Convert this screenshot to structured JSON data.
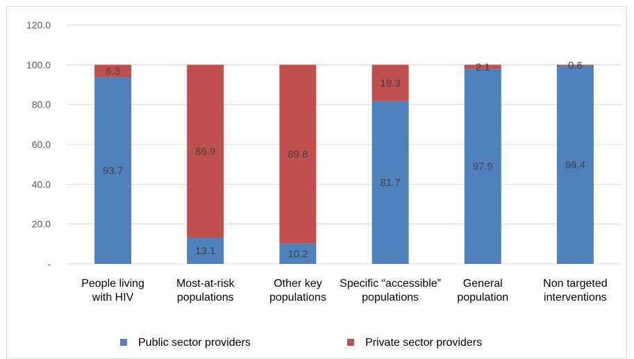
{
  "chart_data": {
    "type": "bar",
    "stacked": true,
    "categories": [
      "People living with HIV",
      "Most-at-risk populations",
      "Other key populations",
      "Specific “accessible” populations",
      "General population",
      "Non targeted interventions"
    ],
    "category_lines": [
      [
        "People living",
        "with HIV"
      ],
      [
        "Most-at-risk",
        "populations"
      ],
      [
        "Other key",
        "populations"
      ],
      [
        "Specific “accessible”",
        "populations"
      ],
      [
        "General",
        "population"
      ],
      [
        "Non targeted",
        "interventions"
      ]
    ],
    "series": [
      {
        "name": "Public sector providers",
        "color": "#4f81bd",
        "values": [
          93.7,
          13.1,
          10.2,
          81.7,
          97.9,
          99.4
        ]
      },
      {
        "name": "Private sector providers",
        "color": "#c0504d",
        "values": [
          6.3,
          86.9,
          89.8,
          18.3,
          2.1,
          0.6
        ]
      }
    ],
    "ylim": [
      0,
      120
    ],
    "yticks": [
      0,
      20,
      40,
      60,
      80,
      100,
      120
    ],
    "ytick_labels": [
      "-",
      "20.0",
      "40.0",
      "60.0",
      "80.0",
      "100.0",
      "120.0"
    ],
    "grid": true,
    "legend_position": "bottom"
  }
}
